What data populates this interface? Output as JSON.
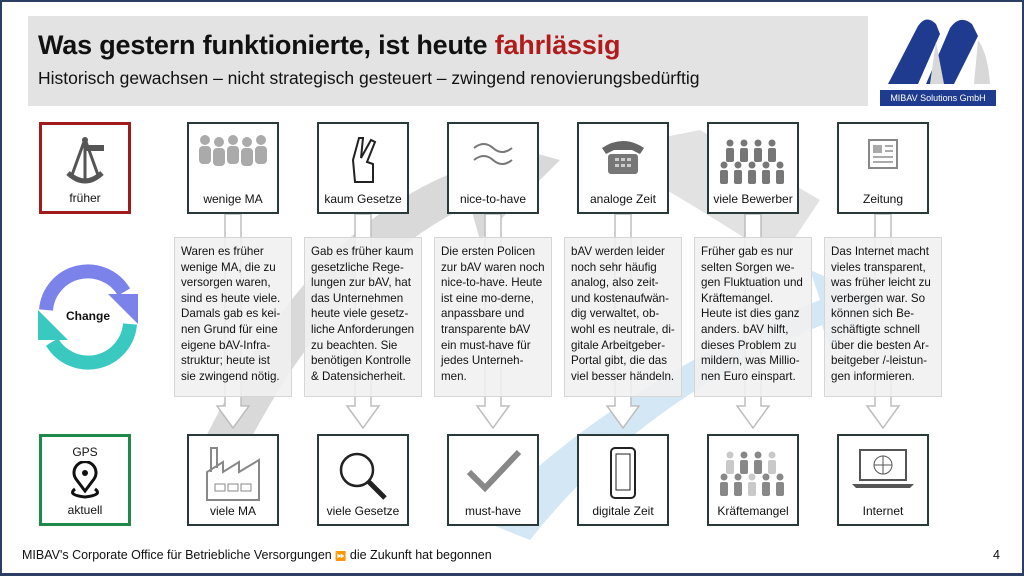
{
  "header": {
    "title_main": "Was gestern funktionierte, ist heute ",
    "title_highlight": "fahrlässig",
    "subtitle": "Historisch gewachsen – nicht strategisch gesteuert – zwingend renovierungsbedürftig",
    "highlight_color": "#b01c1c"
  },
  "logo": {
    "caption": "MIBAV Solutions GmbH",
    "brand_color": "#1f3b8f"
  },
  "left": {
    "before_label": "früher",
    "before_icon": "sextant-icon",
    "change_label": "Change",
    "after_top": "GPS",
    "after_label": "aktuell",
    "after_icon": "map-pin-icon",
    "before_color": "#a01c1c",
    "after_color": "#1e8a4a"
  },
  "columns": [
    {
      "top": "wenige MA",
      "top_icon": "people-group-icon",
      "text": "Waren es früher wenige MA, die zu versorgen waren, sind es heute viele. Damals gab es kei-nen Grund für eine eigene bAV-Infra-struktur; heute ist sie zwingend nötig.",
      "bottom": "viele MA",
      "bottom_icon": "factory-icon"
    },
    {
      "top": "kaum Gesetze",
      "top_icon": "crossed-fingers-icon",
      "text": "Gab es früher kaum gesetzliche Rege-lungen zur bAV, hat das Unternehmen heute viele gesetz-liche Anforderungen zu beachten. Sie benötigen Kontrolle & Datensicherheit.",
      "bottom": "viele Gesetze",
      "bottom_icon": "magnifier-icon"
    },
    {
      "top": "nice-to-have",
      "top_icon": "approx-icon",
      "text": "Die ersten Policen zur bAV waren noch nice-to-have. Heute ist eine mo-derne, anpassbare und transparente bAV ein must-have für jedes Unterneh-men.",
      "bottom": "must-have",
      "bottom_icon": "checkmark-icon"
    },
    {
      "top": "analoge Zeit",
      "top_icon": "telephone-icon",
      "text": "bAV werden leider noch sehr häufig analog, also zeit- und kostenaufwän-dig verwaltet, ob-wohl es neutrale, di-gitale Arbeitgeber-Portal gibt, die das viel besser händeln.",
      "bottom": "digitale Zeit",
      "bottom_icon": "smartphone-icon"
    },
    {
      "top": "viele Bewerber",
      "top_icon": "crowd-icon",
      "text": "Früher gab es nur selten Sorgen we-gen Fluktuation und Kräftemangel. Heute ist dies ganz anders. bAV hilft, dieses Problem zu mildern, was Millio-nen Euro einspart.",
      "bottom": "Kräftemangel",
      "bottom_icon": "sparse-crowd-icon"
    },
    {
      "top": "Zeitung",
      "top_icon": "newspaper-icon",
      "text": "Das Internet macht vieles transparent, was früher leicht zu verbergen war. So können sich Be-schäftigte schnell über die besten Ar-beitgeber /-leistun-gen informieren.",
      "bottom": "Internet",
      "bottom_icon": "laptop-globe-icon"
    }
  ],
  "footer": {
    "left": "MIBAV's Corporate Office für Betriebliche Versorgungen",
    "separator": "⏩",
    "right": "die Zukunft hat begonnen",
    "page": "4"
  }
}
